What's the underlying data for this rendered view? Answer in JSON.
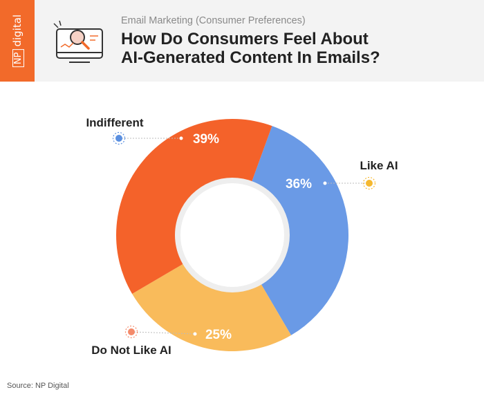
{
  "header": {
    "brand": "NP digital",
    "brand_short": "NP",
    "brand_word": "digital",
    "subtitle": "Email Marketing (Consumer Preferences)",
    "title_line1": "How Do Consumers Feel About",
    "title_line2": "AI-Generated Content In Emails?"
  },
  "chart_data": {
    "type": "pie",
    "donut": true,
    "title": "How Do Consumers Feel About AI-Generated Content In Emails?",
    "categories": [
      "Like AI",
      "Do Not Like AI",
      "Indifferent"
    ],
    "values": [
      36,
      25,
      39
    ],
    "value_labels": [
      "36%",
      "25%",
      "39%"
    ],
    "colors": [
      "#6a9ae6",
      "#f9bb5b",
      "#f4622a"
    ],
    "marker_colors": [
      "#f5b82e",
      "#f48a6a",
      "#5a8fe0"
    ]
  },
  "source": "Source: NP Digital"
}
